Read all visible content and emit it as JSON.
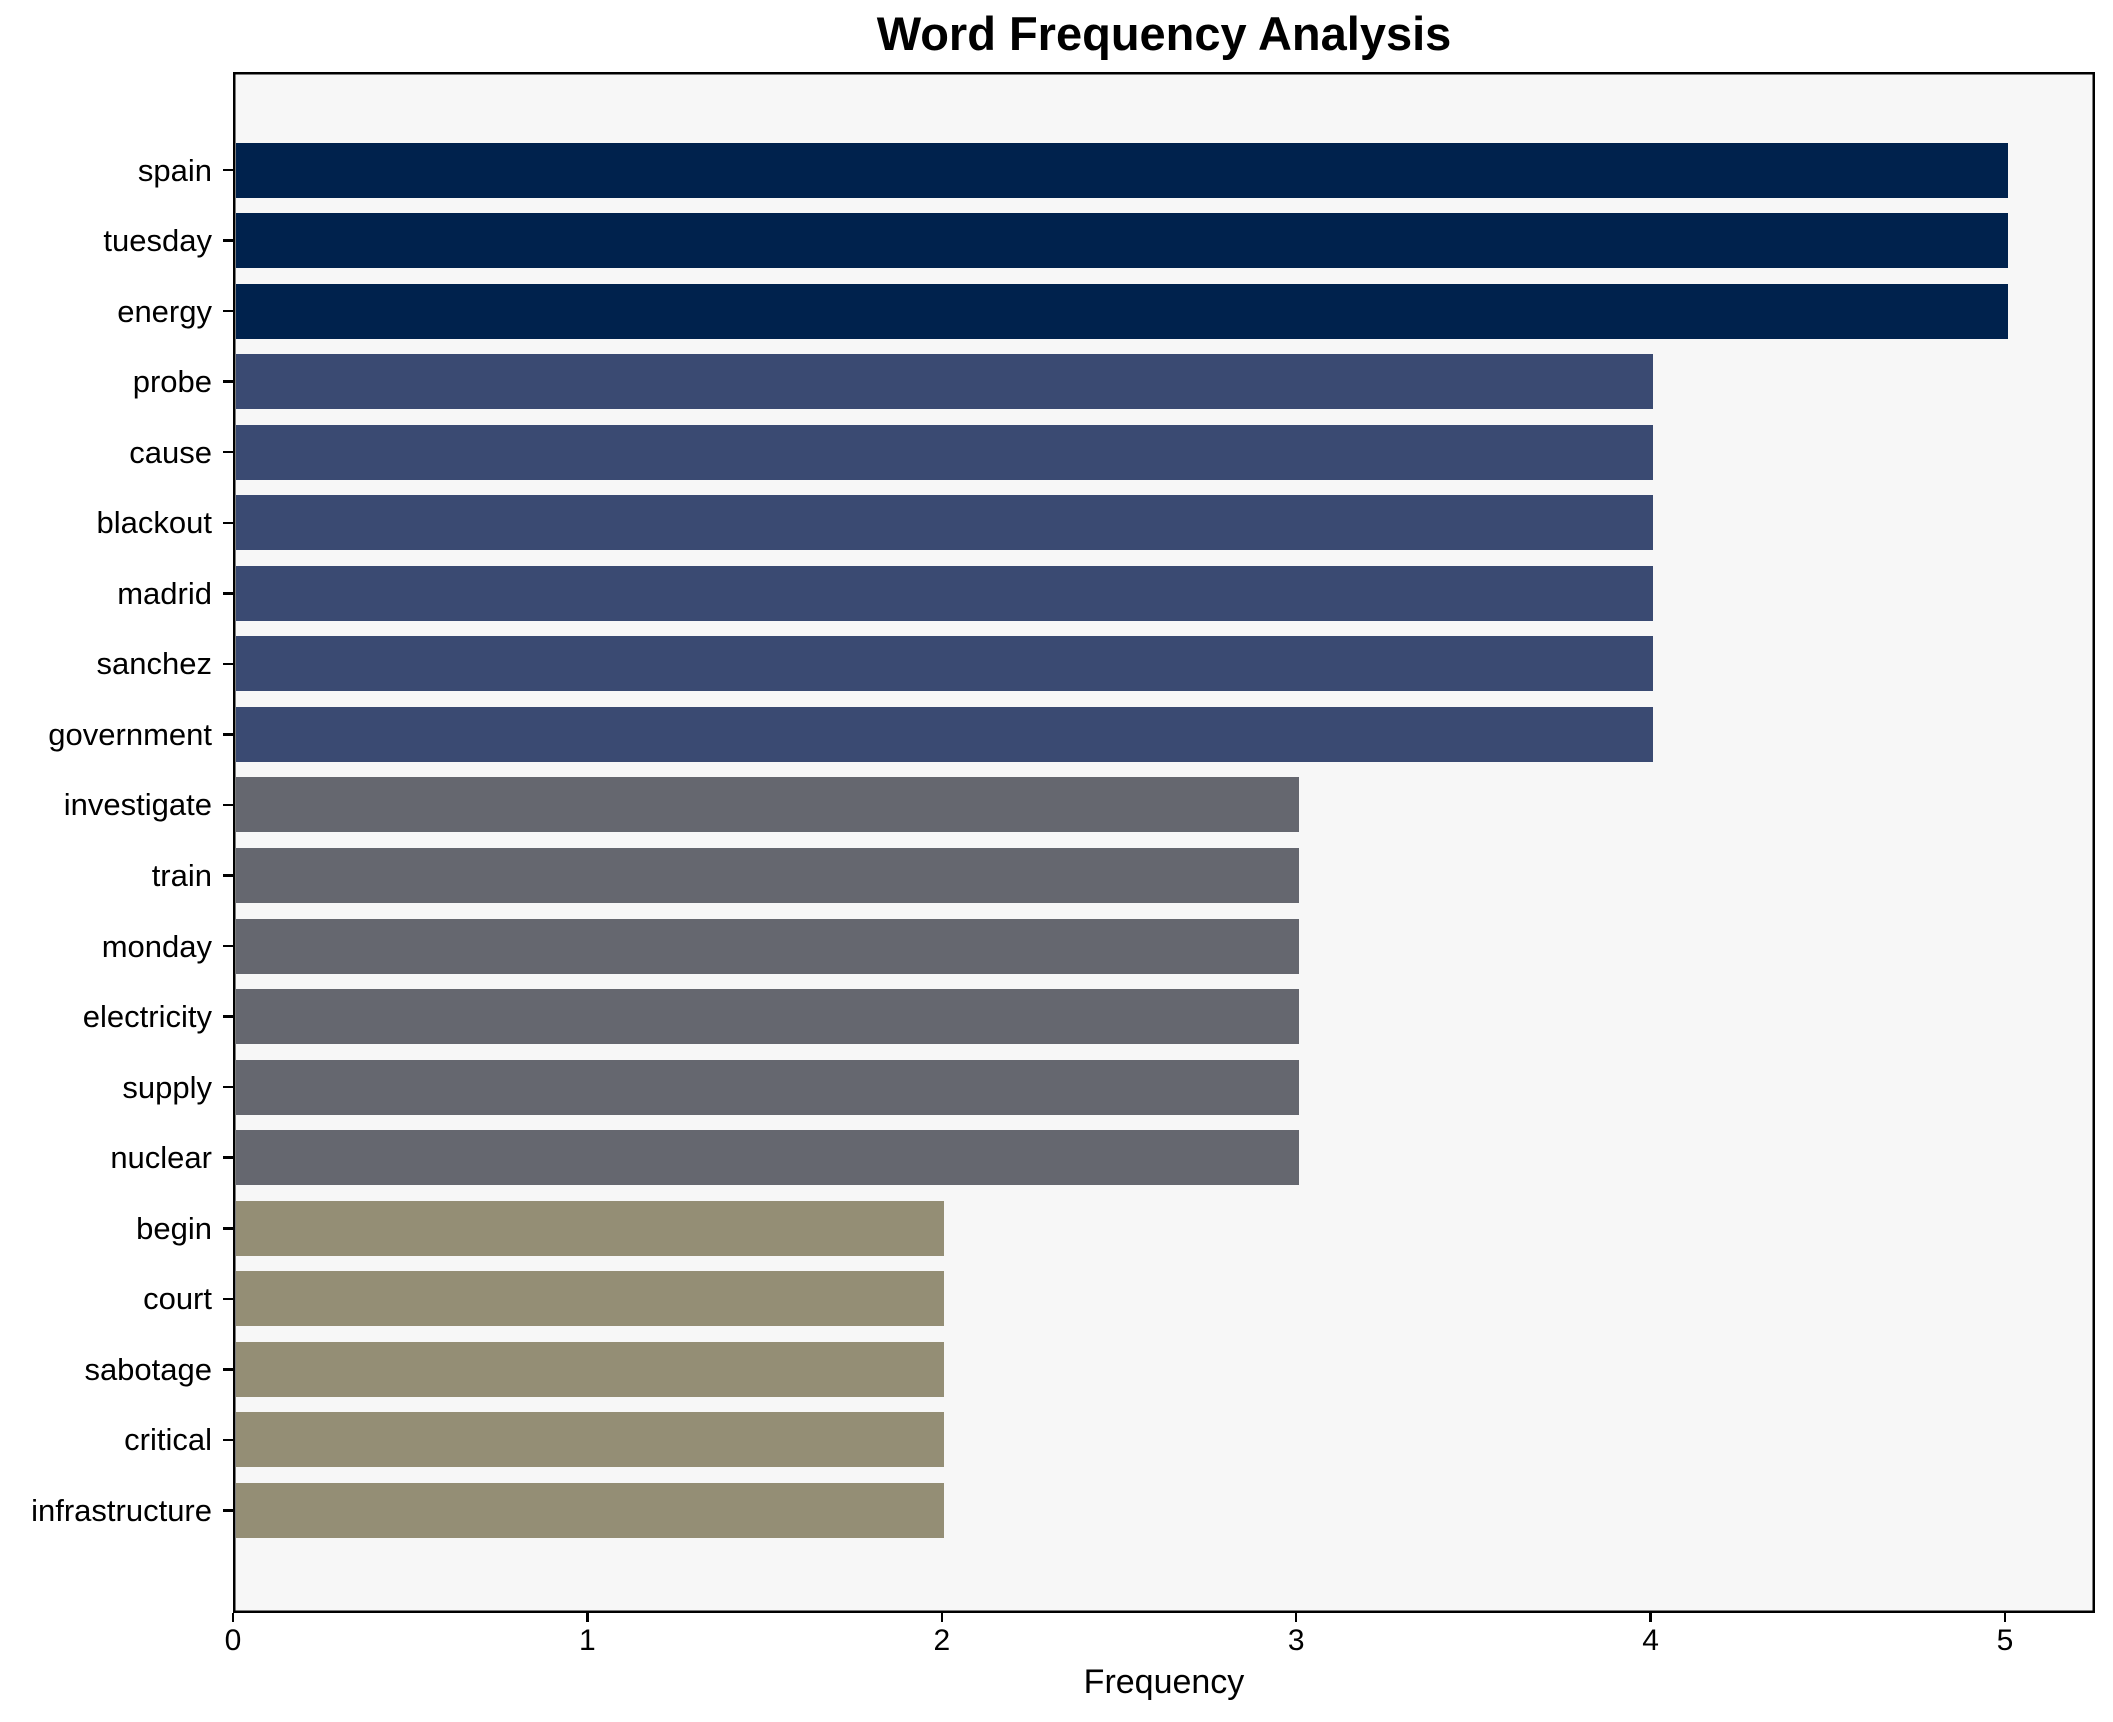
{
  "chart_data": {
    "type": "bar",
    "orientation": "horizontal",
    "title": "Word Frequency Analysis",
    "xlabel": "Frequency",
    "ylabel": "",
    "categories": [
      "spain",
      "tuesday",
      "energy",
      "probe",
      "cause",
      "blackout",
      "madrid",
      "sanchez",
      "government",
      "investigate",
      "train",
      "monday",
      "electricity",
      "supply",
      "nuclear",
      "begin",
      "court",
      "sabotage",
      "critical",
      "infrastructure"
    ],
    "values": [
      5,
      5,
      5,
      4,
      4,
      4,
      4,
      4,
      4,
      3,
      3,
      3,
      3,
      3,
      3,
      2,
      2,
      2,
      2,
      2
    ],
    "xticks": [
      0,
      1,
      2,
      3,
      4,
      5
    ],
    "xlim": [
      0,
      5.25
    ],
    "grid": false,
    "legend": null,
    "colors": {
      "bar_value_5": "#00224d",
      "bar_value_4": "#3a4a72",
      "bar_value_3": "#65676f",
      "bar_value_2": "#948e75",
      "plot_background": "#f7f7f7",
      "figure_background": "#ffffff",
      "spine": "#000000",
      "text": "#000000"
    }
  }
}
